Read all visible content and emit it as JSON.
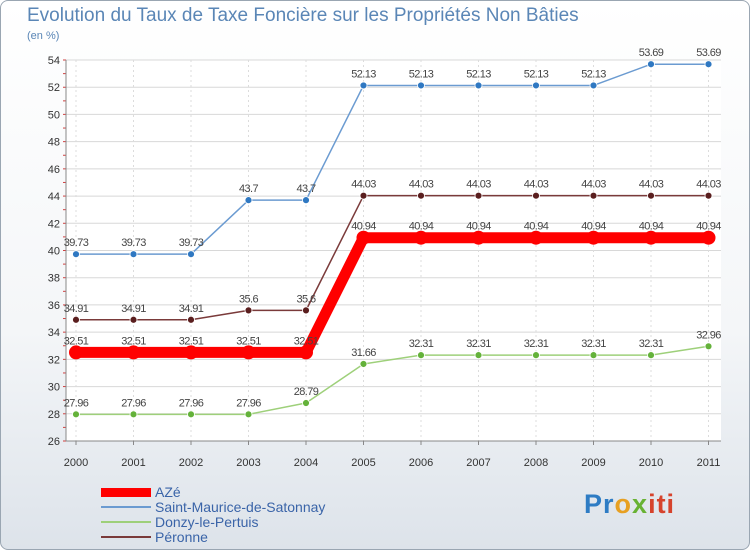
{
  "chart_data": {
    "type": "line",
    "title": "Evolution du Taux de Taxe Foncière sur les Propriétés Non Bâties",
    "ylabel": "(en %)",
    "xlabel": "",
    "ylim": [
      26,
      54
    ],
    "yticks": [
      "26",
      "28",
      "30",
      "32",
      "34",
      "36",
      "38",
      "40",
      "42",
      "44",
      "46",
      "48",
      "50",
      "52",
      "54"
    ],
    "categories": [
      "2000",
      "2001",
      "2002",
      "2003",
      "2004",
      "2005",
      "2006",
      "2007",
      "2008",
      "2009",
      "2010",
      "2011"
    ],
    "series": [
      {
        "name": "Saint-Maurice-de-Satonnay",
        "color": "#6b9bd1",
        "dot": "#2f78c2",
        "values": [
          39.73,
          39.73,
          39.73,
          43.7,
          43.7,
          52.13,
          52.13,
          52.13,
          52.13,
          52.13,
          53.69,
          53.69
        ],
        "labels": [
          "39.73",
          "39.73",
          "39.73",
          "43.7",
          "43.7",
          "52.13",
          "52.13",
          "52.13",
          "52.13",
          "52.13",
          "53.69",
          "53.69"
        ]
      },
      {
        "name": "Péronne",
        "color": "#7a3a3a",
        "dot": "#5a1e1e",
        "values": [
          34.91,
          34.91,
          34.91,
          35.6,
          35.6,
          44.03,
          44.03,
          44.03,
          44.03,
          44.03,
          44.03,
          44.03
        ],
        "labels": [
          "34.91",
          "34.91",
          "34.91",
          "35.6",
          "35.6",
          "44.03",
          "44.03",
          "44.03",
          "44.03",
          "44.03",
          "44.03",
          "44.03"
        ]
      },
      {
        "name": "AZé",
        "color": "#ff0000",
        "dot": "#ff0000",
        "values": [
          32.51,
          32.51,
          32.51,
          32.51,
          32.51,
          40.94,
          40.94,
          40.94,
          40.94,
          40.94,
          40.94,
          40.94
        ],
        "labels": [
          "32.51",
          "32.51",
          "32.51",
          "32.51",
          "32.51",
          "40.94",
          "40.94",
          "40.94",
          "40.94",
          "40.94",
          "40.94",
          "40.94"
        ]
      },
      {
        "name": "Donzy-le-Pertuis",
        "color": "#9ed07a",
        "dot": "#64b23a",
        "values": [
          27.96,
          27.96,
          27.96,
          27.96,
          28.79,
          31.66,
          32.31,
          32.31,
          32.31,
          32.31,
          32.31,
          32.96
        ],
        "labels": [
          "27.96",
          "27.96",
          "27.96",
          "27.96",
          "28.79",
          "31.66",
          "32.31",
          "32.31",
          "32.31",
          "32.31",
          "32.31",
          "32.96"
        ]
      }
    ],
    "legend": [
      "AZé",
      "Saint-Maurice-de-Satonnay",
      "Donzy-le-Pertuis",
      "Péronne"
    ],
    "legend_position": "bottom-left",
    "grid": true
  },
  "brand": {
    "p1": "Pr",
    "p2": "o",
    "p3": "x",
    "p4": "iti"
  },
  "legend_colors": {
    "AZé": "#ff0000",
    "Saint-Maurice-de-Satonnay": "#6b9bd1",
    "Donzy-le-Pertuis": "#9ed07a",
    "Péronne": "#7a3a3a"
  }
}
